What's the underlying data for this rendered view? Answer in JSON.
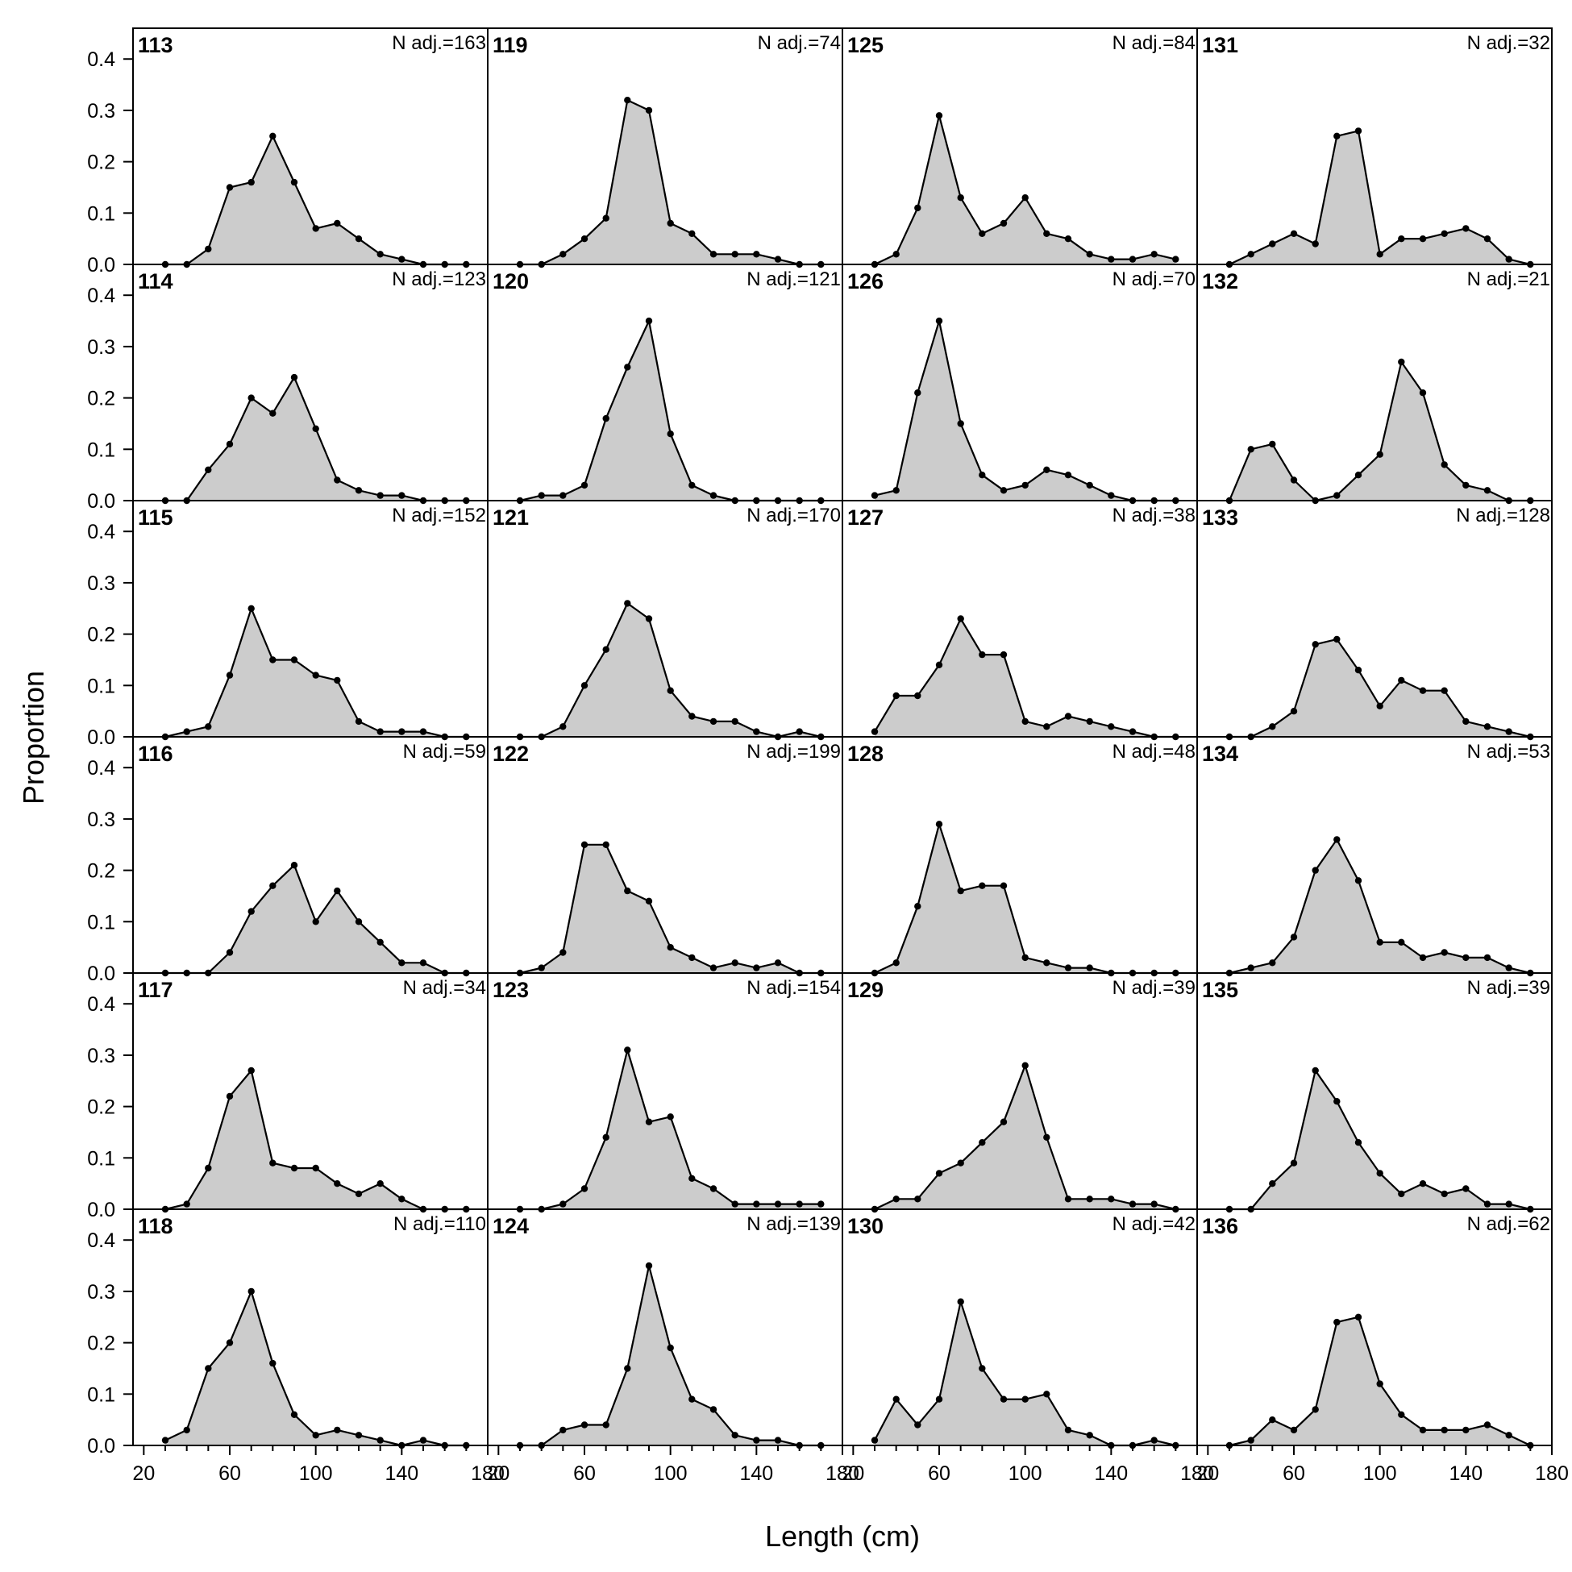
{
  "chart_data": {
    "type": "area",
    "xlabel": "Length (cm)",
    "ylabel": "Proportion",
    "xlim": [
      15,
      180
    ],
    "ylim": [
      0,
      0.46
    ],
    "xticks": [
      20,
      60,
      100,
      140,
      180
    ],
    "yticks": [
      0.0,
      0.1,
      0.2,
      0.3,
      0.4
    ],
    "ytick_labels": [
      "0.0",
      "0.1",
      "0.2",
      "0.3",
      "0.4"
    ],
    "x": [
      30,
      40,
      50,
      60,
      70,
      80,
      90,
      100,
      110,
      120,
      130,
      140,
      150,
      160,
      170
    ],
    "panels": [
      {
        "id": "113",
        "n_label": "N adj.=163",
        "values": [
          0,
          0,
          0.03,
          0.15,
          0.16,
          0.25,
          0.16,
          0.07,
          0.08,
          0.05,
          0.02,
          0.01,
          0,
          0,
          0
        ]
      },
      {
        "id": "114",
        "n_label": "N adj.=123",
        "values": [
          0,
          0,
          0.06,
          0.11,
          0.2,
          0.17,
          0.24,
          0.14,
          0.04,
          0.02,
          0.01,
          0.01,
          0,
          0,
          0
        ]
      },
      {
        "id": "115",
        "n_label": "N adj.=152",
        "values": [
          0,
          0.01,
          0.02,
          0.12,
          0.25,
          0.15,
          0.15,
          0.12,
          0.11,
          0.03,
          0.01,
          0.01,
          0.01,
          0,
          0
        ]
      },
      {
        "id": "116",
        "n_label": "N adj.=59",
        "values": [
          0,
          0,
          0,
          0.04,
          0.12,
          0.17,
          0.21,
          0.1,
          0.16,
          0.1,
          0.06,
          0.02,
          0.02,
          0,
          0
        ]
      },
      {
        "id": "117",
        "n_label": "N adj.=34",
        "values": [
          0,
          0.01,
          0.08,
          0.22,
          0.27,
          0.09,
          0.08,
          0.08,
          0.05,
          0.03,
          0.05,
          0.02,
          0,
          0,
          0
        ]
      },
      {
        "id": "118",
        "n_label": "N adj.=110",
        "values": [
          0.01,
          0.03,
          0.15,
          0.2,
          0.3,
          0.16,
          0.06,
          0.02,
          0.03,
          0.02,
          0.01,
          0,
          0.01,
          0,
          0
        ]
      },
      {
        "id": "119",
        "n_label": "N adj.=74",
        "values": [
          0,
          0,
          0.02,
          0.05,
          0.09,
          0.32,
          0.3,
          0.08,
          0.06,
          0.02,
          0.02,
          0.02,
          0.01,
          0,
          0
        ]
      },
      {
        "id": "120",
        "n_label": "N adj.=121",
        "values": [
          0,
          0.01,
          0.01,
          0.03,
          0.16,
          0.26,
          0.35,
          0.13,
          0.03,
          0.01,
          0,
          0,
          0,
          0,
          0
        ]
      },
      {
        "id": "121",
        "n_label": "N adj.=170",
        "values": [
          0,
          0,
          0.02,
          0.1,
          0.17,
          0.26,
          0.23,
          0.09,
          0.04,
          0.03,
          0.03,
          0.01,
          0,
          0.01,
          0
        ]
      },
      {
        "id": "122",
        "n_label": "N adj.=199",
        "values": [
          0,
          0.01,
          0.04,
          0.25,
          0.25,
          0.16,
          0.14,
          0.05,
          0.03,
          0.01,
          0.02,
          0.01,
          0.02,
          0,
          0
        ]
      },
      {
        "id": "123",
        "n_label": "N adj.=154",
        "values": [
          0,
          0,
          0.01,
          0.04,
          0.14,
          0.31,
          0.17,
          0.18,
          0.06,
          0.04,
          0.01,
          0.01,
          0.01,
          0.01,
          0.01
        ]
      },
      {
        "id": "124",
        "n_label": "N adj.=139",
        "values": [
          0,
          0,
          0.03,
          0.04,
          0.04,
          0.15,
          0.35,
          0.19,
          0.09,
          0.07,
          0.02,
          0.01,
          0.01,
          0,
          0
        ]
      },
      {
        "id": "125",
        "n_label": "N adj.=84",
        "values": [
          0,
          0.02,
          0.11,
          0.29,
          0.13,
          0.06,
          0.08,
          0.13,
          0.06,
          0.05,
          0.02,
          0.01,
          0.01,
          0.02,
          0.01
        ]
      },
      {
        "id": "126",
        "n_label": "N adj.=70",
        "values": [
          0.01,
          0.02,
          0.21,
          0.35,
          0.15,
          0.05,
          0.02,
          0.03,
          0.06,
          0.05,
          0.03,
          0.01,
          0,
          0,
          0
        ]
      },
      {
        "id": "127",
        "n_label": "N adj.=38",
        "values": [
          0.01,
          0.08,
          0.08,
          0.14,
          0.23,
          0.16,
          0.16,
          0.03,
          0.02,
          0.04,
          0.03,
          0.02,
          0.01,
          0,
          0
        ]
      },
      {
        "id": "128",
        "n_label": "N adj.=48",
        "values": [
          0,
          0.02,
          0.13,
          0.29,
          0.16,
          0.17,
          0.17,
          0.03,
          0.02,
          0.01,
          0.01,
          0,
          0,
          0,
          0
        ]
      },
      {
        "id": "129",
        "n_label": "N adj.=39",
        "values": [
          0,
          0.02,
          0.02,
          0.07,
          0.09,
          0.13,
          0.17,
          0.28,
          0.14,
          0.02,
          0.02,
          0.02,
          0.01,
          0.01,
          0
        ]
      },
      {
        "id": "130",
        "n_label": "N adj.=42",
        "values": [
          0.01,
          0.09,
          0.04,
          0.09,
          0.28,
          0.15,
          0.09,
          0.09,
          0.1,
          0.03,
          0.02,
          0,
          0,
          0.01,
          0
        ]
      },
      {
        "id": "131",
        "n_label": "N adj.=32",
        "values": [
          0,
          0.02,
          0.04,
          0.06,
          0.04,
          0.25,
          0.26,
          0.02,
          0.05,
          0.05,
          0.06,
          0.07,
          0.05,
          0.01,
          0
        ]
      },
      {
        "id": "132",
        "n_label": "N adj.=21",
        "values": [
          0,
          0.1,
          0.11,
          0.04,
          0,
          0.01,
          0.05,
          0.09,
          0.27,
          0.21,
          0.07,
          0.03,
          0.02,
          0,
          0
        ]
      },
      {
        "id": "133",
        "n_label": "N adj.=128",
        "values": [
          0,
          0,
          0.02,
          0.05,
          0.18,
          0.19,
          0.13,
          0.06,
          0.11,
          0.09,
          0.09,
          0.03,
          0.02,
          0.01,
          0
        ]
      },
      {
        "id": "134",
        "n_label": "N adj.=53",
        "values": [
          0,
          0.01,
          0.02,
          0.07,
          0.2,
          0.26,
          0.18,
          0.06,
          0.06,
          0.03,
          0.04,
          0.03,
          0.03,
          0.01,
          0
        ]
      },
      {
        "id": "135",
        "n_label": "N adj.=39",
        "values": [
          0,
          0,
          0.05,
          0.09,
          0.27,
          0.21,
          0.13,
          0.07,
          0.03,
          0.05,
          0.03,
          0.04,
          0.01,
          0.01,
          0
        ]
      },
      {
        "id": "136",
        "n_label": "N adj.=62",
        "values": [
          0,
          0.01,
          0.05,
          0.03,
          0.07,
          0.24,
          0.25,
          0.12,
          0.06,
          0.03,
          0.03,
          0.03,
          0.04,
          0.02,
          0
        ]
      }
    ]
  }
}
